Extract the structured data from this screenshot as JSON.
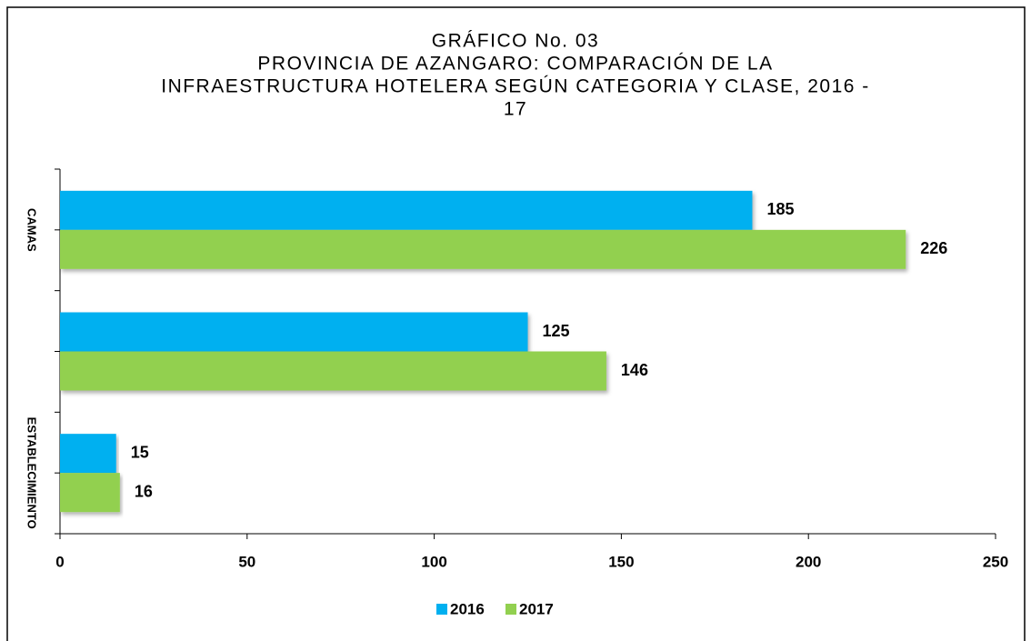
{
  "chart_data": {
    "type": "hbar",
    "title": [
      "GRÁFICO No. 03",
      "PROVINCIA DE AZANGARO: COMPARACIÓN DE LA",
      "INFRAESTRUCTURA HOTELERA SEGÚN CATEGORIA Y CLASE, 2016 -",
      "17"
    ],
    "categories": [
      "CAMAS",
      null,
      "ESTABLECIMIENTO"
    ],
    "series": [
      {
        "name": "2016",
        "color": "#00b0f0",
        "values": [
          185,
          125,
          15
        ]
      },
      {
        "name": "2017",
        "color": "#92d050",
        "values": [
          226,
          146,
          16
        ]
      }
    ],
    "xlim": [
      0,
      250
    ],
    "xticks": [
      0,
      50,
      100,
      150,
      200,
      250
    ],
    "legend": "bottom"
  }
}
